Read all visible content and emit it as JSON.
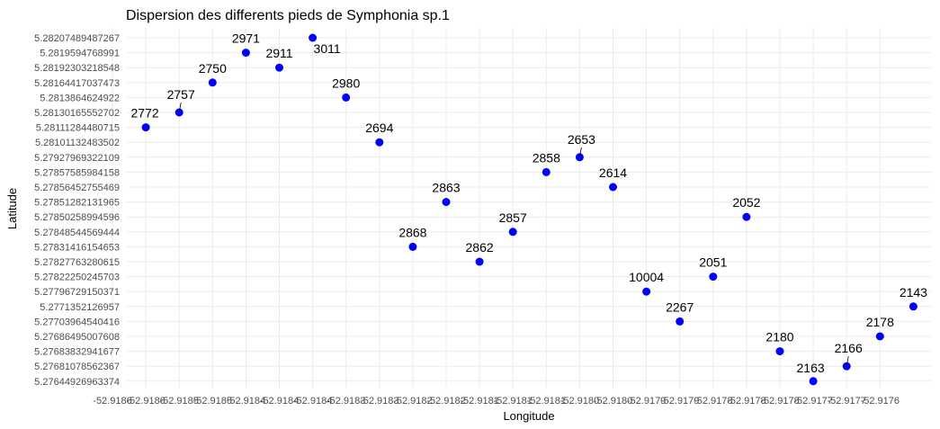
{
  "chart_data": {
    "type": "scatter",
    "title": "Dispersion des differents pieds de Symphonia sp.1",
    "xlabel": "Longitude",
    "ylabel": "Latitude",
    "grid": true,
    "legend": "none",
    "point_color": "#0000ff",
    "x_ticks": [
      "-52.9186",
      "-52.9186",
      "-52.9185",
      "-52.9185",
      "-52.9184",
      "-52.9184",
      "-52.9184",
      "-52.9183",
      "-52.9183",
      "-52.9182",
      "-52.9182",
      "-52.9181",
      "-52.9181",
      "-52.9181",
      "-52.9180",
      "-52.9180",
      "-52.9179",
      "-52.9179",
      "-52.9178",
      "-52.9178",
      "-52.9178",
      "-52.9177",
      "-52.9177",
      "-52.9176"
    ],
    "y_ticks": [
      "5.28207489487267",
      "5.2819594768991",
      "5.28192303218548",
      "5.28164417037473",
      "5.2813864624922",
      "5.28130165552702",
      "5.28111284480715",
      "5.28101132483502",
      "5.27927969322109",
      "5.27857585984158",
      "5.27856452755469",
      "5.27851282131965",
      "5.27850258994596",
      "5.27848544569444",
      "5.27831416154653",
      "5.27827763280615",
      "5.27822250245703",
      "5.27796729150371",
      "5.2771352126957",
      "5.27703964540416",
      "5.27686495007608",
      "5.27683832941677",
      "5.27681078562367",
      "5.27644926963374"
    ],
    "points": [
      {
        "label": "2772",
        "x": 1,
        "y": 7
      },
      {
        "label": "2757",
        "x": 2,
        "y": 6
      },
      {
        "label": "2750",
        "x": 3,
        "y": 4
      },
      {
        "label": "2971",
        "x": 4,
        "y": 2
      },
      {
        "label": "2911",
        "x": 5,
        "y": 3
      },
      {
        "label": "3011",
        "x": 6,
        "y": 1
      },
      {
        "label": "2980",
        "x": 7,
        "y": 5
      },
      {
        "label": "2694",
        "x": 8,
        "y": 8
      },
      {
        "label": "2868",
        "x": 9,
        "y": 15
      },
      {
        "label": "2863",
        "x": 10,
        "y": 12
      },
      {
        "label": "2862",
        "x": 11,
        "y": 16
      },
      {
        "label": "2857",
        "x": 12,
        "y": 14
      },
      {
        "label": "2858",
        "x": 13,
        "y": 10
      },
      {
        "label": "2653",
        "x": 14,
        "y": 9
      },
      {
        "label": "2614",
        "x": 15,
        "y": 11
      },
      {
        "label": "10004",
        "x": 16,
        "y": 18
      },
      {
        "label": "2267",
        "x": 17,
        "y": 20
      },
      {
        "label": "2051",
        "x": 18,
        "y": 17
      },
      {
        "label": "2052",
        "x": 19,
        "y": 13
      },
      {
        "label": "2180",
        "x": 20,
        "y": 22
      },
      {
        "label": "2163",
        "x": 21,
        "y": 24
      },
      {
        "label": "2166",
        "x": 22,
        "y": 23
      },
      {
        "label": "2178",
        "x": 23,
        "y": 21
      },
      {
        "label": "2143",
        "x": 24,
        "y": 19
      }
    ]
  }
}
